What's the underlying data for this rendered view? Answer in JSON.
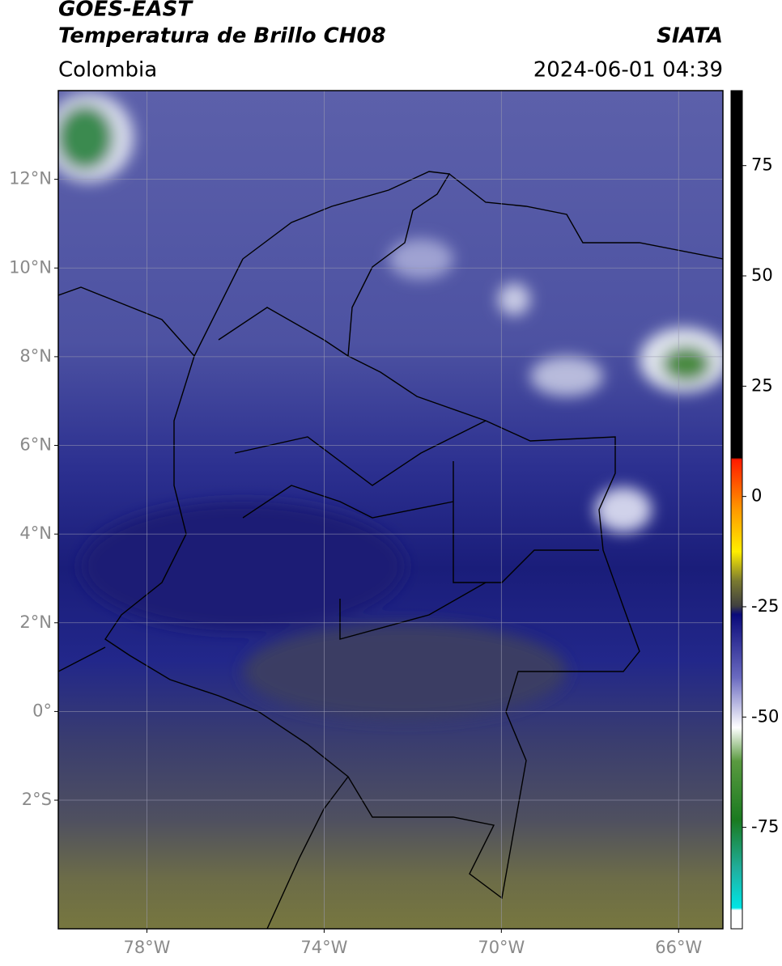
{
  "header": {
    "satellite": "GOES-EAST",
    "product": "Temperatura de Brillo CH08",
    "region": "Colombia",
    "agency": "SIATA",
    "datetime": "2024-06-01 04:39"
  },
  "map": {
    "xlim": [
      -80,
      -65
    ],
    "ylim": [
      -4.9,
      14
    ],
    "xticks": [
      {
        "value": -78,
        "label": "78°W"
      },
      {
        "value": -74,
        "label": "74°W"
      },
      {
        "value": -70,
        "label": "70°W"
      },
      {
        "value": -66,
        "label": "66°W"
      }
    ],
    "yticks": [
      {
        "value": 12,
        "label": "12°N"
      },
      {
        "value": 10,
        "label": "10°N"
      },
      {
        "value": 8,
        "label": "8°N"
      },
      {
        "value": 6,
        "label": "6°N"
      },
      {
        "value": 4,
        "label": "4°N"
      },
      {
        "value": 2,
        "label": "2°N"
      },
      {
        "value": 0,
        "label": "0°"
      },
      {
        "value": -2,
        "label": "2°S"
      }
    ],
    "grid": true
  },
  "colorbar": {
    "lim": [
      -98,
      92
    ],
    "ticks": [
      75,
      50,
      25,
      0,
      -25,
      -50,
      -75
    ]
  }
}
